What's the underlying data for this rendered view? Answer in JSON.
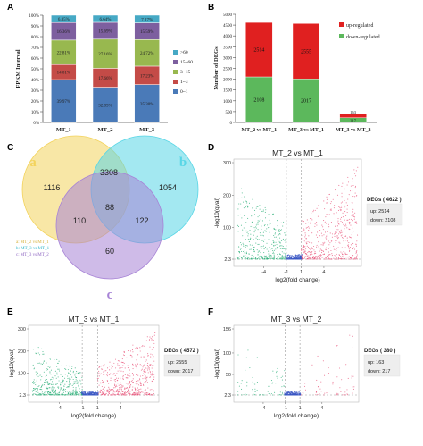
{
  "panels": {
    "a": {
      "letter": "A"
    },
    "b": {
      "letter": "B"
    },
    "c": {
      "letter": "C"
    },
    "d": {
      "letter": "D"
    },
    "e": {
      "letter": "E"
    },
    "f": {
      "letter": "F"
    }
  },
  "chart_data": [
    {
      "id": "A",
      "type": "bar",
      "stacked": true,
      "categories": [
        "MT_1",
        "MT_2",
        "MT_3"
      ],
      "ylabel": "FPKM Interval",
      "yticks": [
        "0%",
        "10%",
        "20%",
        "30%",
        "40%",
        "50%",
        "60%",
        "70%",
        "80%",
        "90%",
        "100%"
      ],
      "ylim": [
        0,
        100
      ],
      "series": [
        {
          "name": "0~1",
          "color": "#4a7ab8",
          "values": [
            39.97,
            32.85,
            35.3
          ],
          "labels": [
            "39.97%",
            "32.85%",
            "35.30%"
          ]
        },
        {
          "name": "1~3",
          "color": "#c44b47",
          "values": [
            14.01,
            17.66,
            17.23
          ],
          "labels": [
            "14.01%",
            "17.66%",
            "17.23%"
          ]
        },
        {
          "name": "3~15",
          "color": "#98b84f",
          "values": [
            22.81,
            27.16,
            24.72
          ],
          "labels": [
            "22.81%",
            "27.16%",
            "24.72%"
          ]
        },
        {
          "name": "15~60",
          "color": "#7d5f9f",
          "values": [
            16.36,
            15.69,
            15.59
          ],
          "labels": [
            "16.36%",
            "15.69%",
            "15.59%"
          ]
        },
        {
          "name": ">60",
          "color": "#46a9c5",
          "values": [
            6.85,
            6.64,
            7.17
          ],
          "labels": [
            "6.85%",
            "6.64%",
            "7.17%"
          ]
        }
      ],
      "legend_order": [
        ">60",
        "15~60",
        "3~15",
        "1~3",
        "0~1"
      ]
    },
    {
      "id": "B",
      "type": "bar",
      "stacked": true,
      "categories": [
        "MT_2 vs MT_1",
        "MT_3 vs MT_1",
        "MT_3 vs MT_2"
      ],
      "ylabel": "Number of DEGs",
      "yticks": [
        "0",
        "500",
        "1000",
        "1500",
        "2000",
        "2500",
        "3000",
        "3500",
        "4000",
        "4500",
        "5000"
      ],
      "ylim": [
        0,
        5000
      ],
      "series": [
        {
          "name": "down-regulated",
          "color": "#5cb85c",
          "values": [
            2108,
            2017,
            217
          ]
        },
        {
          "name": "up-regulated",
          "color": "#e02020",
          "values": [
            2514,
            2555,
            163
          ]
        }
      ]
    },
    {
      "id": "C",
      "type": "venn",
      "set_labels": [
        "a",
        "b",
        "c"
      ],
      "set_colors": [
        "#f3d35c",
        "#58d6e6",
        "#a783d6"
      ],
      "regions": {
        "a_only": 1116,
        "b_only": 1054,
        "c_only": 60,
        "ab": 3308,
        "ac": 110,
        "bc": 122,
        "abc": 88
      },
      "legend": [
        "a: MT_2 vs MT_1",
        "b: MT_3 vs MT_1",
        "c: MT_3 vs MT_2"
      ]
    },
    {
      "id": "D",
      "type": "scatter",
      "title": "MT_2  vs  MT_1",
      "xlabel": "log2(fold change)",
      "ylabel": "-log10(qval)",
      "xticks": [
        "-4",
        "-1",
        "1",
        "4"
      ],
      "yticks": [
        "2.3",
        "100",
        "200",
        "300"
      ],
      "box": {
        "title": "DEGs ( 4622 )",
        "up": "up: 2514",
        "down": "down: 2108"
      }
    },
    {
      "id": "E",
      "type": "scatter",
      "title": "MT_3  vs  MT_1",
      "xlabel": "log2(fold change)",
      "ylabel": "-log10(qval)",
      "xticks": [
        "-4",
        "-1",
        "1",
        "4"
      ],
      "yticks": [
        "2.3",
        "100",
        "200",
        "300"
      ],
      "box": {
        "title": "DEGs ( 4572 )",
        "up": "up: 2555",
        "down": "down: 2017"
      }
    },
    {
      "id": "F",
      "type": "scatter",
      "title": "MT_3  vs  MT_2",
      "xlabel": "log2(fold change)",
      "ylabel": "-log10(qval)",
      "xticks": [
        "-4",
        "-1",
        "1",
        "4"
      ],
      "yticks": [
        "2.3",
        "50",
        "100",
        "156"
      ],
      "box": {
        "title": "DEGs ( 380 )",
        "up": "up: 163",
        "down": "down: 217"
      }
    }
  ]
}
